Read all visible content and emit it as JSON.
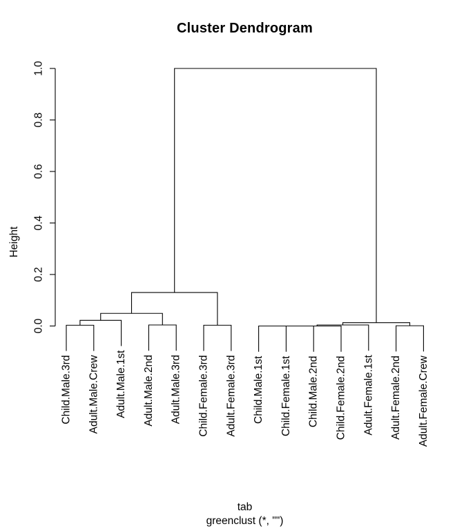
{
  "title": "Cluster Dendrogram",
  "y_axis": {
    "label": "Height",
    "ticks": [
      "0.0",
      "0.2",
      "0.4",
      "0.6",
      "0.8",
      "1.0"
    ]
  },
  "caption": {
    "line1": "tab",
    "line2": "greenclust (*, \"\")"
  },
  "colors": {
    "line": "#000000",
    "text": "#000000",
    "background": "#ffffff"
  },
  "chart_data": {
    "type": "dendrogram",
    "title": "Cluster Dendrogram",
    "ylabel": "Height",
    "xlabel": "tab",
    "sub": "greenclust (*, \"\")",
    "ylim": [
      0,
      1
    ],
    "hang": 0.1,
    "grid": false,
    "leaves": [
      "Child.Male.3rd",
      "Adult.Male.Crew",
      "Adult.Male.1st",
      "Adult.Male.2nd",
      "Adult.Male.3rd",
      "Child.Female.3rd",
      "Adult.Female.3rd",
      "Child.Male.1st",
      "Child.Female.1st",
      "Child.Male.2nd",
      "Child.Female.2nd",
      "Adult.Female.1st",
      "Adult.Female.2nd",
      "Adult.Female.Crew"
    ],
    "merges": [
      {
        "a": "L0",
        "b": "L1",
        "height": 0.003
      },
      {
        "a": "M0",
        "b": "L2",
        "height": 0.022
      },
      {
        "a": "L3",
        "b": "L4",
        "height": 0.004
      },
      {
        "a": "M1",
        "b": "M2",
        "height": 0.049
      },
      {
        "a": "L5",
        "b": "L6",
        "height": 0.003
      },
      {
        "a": "M3",
        "b": "M4",
        "height": 0.13
      },
      {
        "a": "L7",
        "b": "L8",
        "height": 0.0
      },
      {
        "a": "M6",
        "b": "L9",
        "height": 0.0
      },
      {
        "a": "M7",
        "b": "L10",
        "height": 0.0
      },
      {
        "a": "M8",
        "b": "L11",
        "height": 0.004
      },
      {
        "a": "L12",
        "b": "L13",
        "height": 0.001
      },
      {
        "a": "M9",
        "b": "M10",
        "height": 0.013
      },
      {
        "a": "M5",
        "b": "M11",
        "height": 1.0
      }
    ]
  }
}
